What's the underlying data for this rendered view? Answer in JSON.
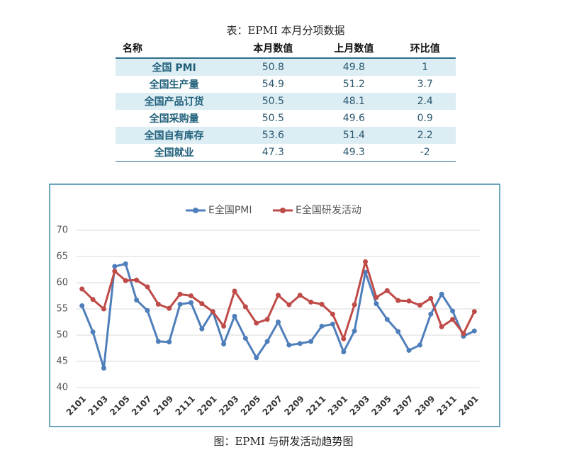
{
  "table": {
    "title": "表：EPMI 本月分项数据",
    "columns": [
      "名称",
      "本月数值",
      "上月数值",
      "环比值"
    ],
    "rows": [
      [
        "全国 PMI",
        "50.8",
        "49.8",
        "1"
      ],
      [
        "全国生产量",
        "54.9",
        "51.2",
        "3.7"
      ],
      [
        "全国产品订货",
        "50.5",
        "48.1",
        "2.4"
      ],
      [
        "全国采购量",
        "50.5",
        "49.6",
        "0.9"
      ],
      [
        "全国自有库存",
        "53.6",
        "51.4",
        "2.2"
      ],
      [
        "全国就业",
        "47.3",
        "49.3",
        "-2"
      ]
    ]
  },
  "chart_data": {
    "type": "line",
    "categories": [
      "2101",
      null,
      "2103",
      null,
      "2105",
      null,
      "2107",
      null,
      "2109",
      null,
      "2111",
      null,
      "2201",
      null,
      "2203",
      null,
      "2205",
      null,
      "2207",
      null,
      "2209",
      null,
      "2211",
      null,
      "2301",
      null,
      "2303",
      null,
      "2305",
      null,
      "2307",
      null,
      "2309",
      null,
      "2311",
      null,
      "2401"
    ],
    "series": [
      {
        "name": "E全国PMI",
        "color": "#4f7fba",
        "values": [
          55.6,
          50.6,
          43.7,
          63.1,
          63.6,
          56.7,
          54.7,
          48.8,
          48.7,
          55.9,
          56.2,
          51.2,
          54.5,
          48.3,
          53.6,
          49.4,
          45.7,
          48.8,
          52.5,
          48.1,
          48.4,
          48.8,
          51.7,
          52.1,
          46.8,
          50.8,
          62.0,
          56.0,
          53.0,
          50.7,
          47.1,
          48.1,
          54.0,
          57.8,
          54.6,
          49.8,
          50.8
        ]
      },
      {
        "name": "E全国研发活动",
        "color": "#be4b48",
        "values": [
          58.8,
          56.8,
          55.0,
          62.2,
          60.4,
          60.5,
          59.2,
          55.9,
          55.1,
          57.8,
          57.5,
          56.0,
          54.5,
          51.7,
          58.4,
          55.4,
          52.3,
          53.0,
          57.6,
          55.8,
          57.6,
          56.3,
          55.9,
          54.0,
          49.3,
          55.8,
          64.0,
          57.2,
          58.5,
          56.6,
          56.5,
          55.7,
          57.0,
          51.6,
          53.0,
          50.3,
          54.5
        ]
      }
    ],
    "ylim": [
      40,
      70
    ],
    "yticks": [
      40,
      45,
      50,
      55,
      60,
      65,
      70
    ],
    "grid": true,
    "legend": "top",
    "caption": "图：EPMI 与研发活动趋势图"
  }
}
